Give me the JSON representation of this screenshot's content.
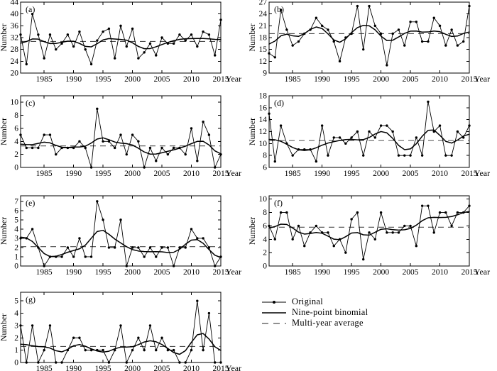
{
  "legend": {
    "items": [
      {
        "label": "Original",
        "sample": "line-dot"
      },
      {
        "label": "Nine-point binomial",
        "sample": "solid-line"
      },
      {
        "label": "Multi-year average",
        "sample": "dashed-line"
      }
    ]
  },
  "colors": {
    "series": "#000000",
    "average_dash": "#4d4d4d",
    "background": "#ffffff"
  },
  "chart_data": [
    {
      "panel": "(a)",
      "type": "line",
      "xlabel": "Year",
      "ylabel": "Number",
      "x_start": 1981,
      "x_end": 2015,
      "xticks": [
        1985,
        1990,
        1995,
        2000,
        2005,
        2010,
        2015
      ],
      "ylim": [
        20,
        44
      ],
      "yticks": [
        20,
        24,
        28,
        32,
        36,
        40,
        44
      ],
      "series": [
        {
          "name": "Original",
          "style": "line-with-dots",
          "values": [
            33,
            23,
            40,
            33,
            25,
            33,
            28,
            30,
            33,
            29,
            34,
            28,
            23,
            31,
            34,
            35,
            25,
            36,
            29,
            35,
            25,
            27,
            30,
            26,
            32,
            30,
            30,
            33,
            31,
            33,
            29,
            34,
            33,
            26,
            38
          ]
        },
        {
          "name": "Nine-point binomial",
          "style": "smooth-line",
          "derived_from": "Original"
        },
        {
          "name": "Multi-year average",
          "style": "dashed-line",
          "value": 30.7
        }
      ]
    },
    {
      "panel": "(b)",
      "type": "line",
      "xlabel": "Year",
      "ylabel": "Number",
      "x_start": 1981,
      "x_end": 2015,
      "xticks": [
        1985,
        1990,
        1995,
        2000,
        2005,
        2010,
        2015
      ],
      "ylim": [
        9,
        27
      ],
      "yticks": [
        9,
        12,
        15,
        18,
        21,
        24,
        27
      ],
      "series": [
        {
          "name": "Original",
          "style": "line-with-dots",
          "values": [
            14,
            13,
            25,
            20,
            16,
            17,
            19,
            20,
            23,
            21,
            20,
            17,
            12,
            18,
            19,
            26,
            15,
            26,
            21,
            19,
            11,
            19,
            20,
            16,
            22,
            22,
            17,
            17,
            23,
            21,
            16,
            20,
            16,
            17,
            26
          ]
        },
        {
          "name": "Nine-point binomial",
          "style": "smooth-line",
          "derived_from": "Original"
        },
        {
          "name": "Multi-year average",
          "style": "dashed-line",
          "value": 19.0
        }
      ]
    },
    {
      "panel": "(c)",
      "type": "line",
      "xlabel": "Year",
      "ylabel": "Number",
      "x_start": 1981,
      "x_end": 2015,
      "xticks": [
        1985,
        1990,
        1995,
        2000,
        2005,
        2010,
        2015
      ],
      "ylim": [
        0,
        11
      ],
      "yticks": [
        0,
        2,
        4,
        6,
        8,
        10
      ],
      "series": [
        {
          "name": "Original",
          "style": "line-with-dots",
          "values": [
            5,
            3,
            3,
            3,
            5,
            5,
            2,
            3,
            3,
            3,
            4,
            3,
            0,
            9,
            4,
            4,
            3,
            5,
            2,
            5,
            4,
            0,
            3,
            1,
            3,
            2,
            3,
            3,
            2,
            6,
            1,
            7,
            5,
            0,
            2
          ]
        },
        {
          "name": "Nine-point binomial",
          "style": "smooth-line",
          "derived_from": "Original"
        },
        {
          "name": "Multi-year average",
          "style": "dashed-line",
          "value": 3.3
        }
      ]
    },
    {
      "panel": "(d)",
      "type": "line",
      "xlabel": "Year",
      "ylabel": "Number",
      "x_start": 1981,
      "x_end": 2015,
      "xticks": [
        1985,
        1990,
        1995,
        2000,
        2005,
        2010,
        2015
      ],
      "ylim": [
        6,
        18
      ],
      "yticks": [
        6,
        8,
        10,
        12,
        14,
        16,
        18
      ],
      "series": [
        {
          "name": "Original",
          "style": "line-with-dots",
          "values": [
            15,
            7,
            13,
            10,
            8,
            9,
            9,
            9,
            7,
            13,
            8,
            11,
            11,
            10,
            11,
            12,
            8,
            12,
            11,
            13,
            13,
            12,
            8,
            8,
            8,
            11,
            8,
            17,
            12,
            13,
            8,
            8,
            12,
            11,
            13
          ]
        },
        {
          "name": "Nine-point binomial",
          "style": "smooth-line",
          "derived_from": "Original"
        },
        {
          "name": "Multi-year average",
          "style": "dashed-line",
          "value": 10.5
        }
      ]
    },
    {
      "panel": "(e)",
      "type": "line",
      "xlabel": "Year",
      "ylabel": "Number",
      "x_start": 1981,
      "x_end": 2015,
      "xticks": [
        1985,
        1990,
        1995,
        2000,
        2005,
        2010,
        2015
      ],
      "ylim": [
        0,
        7.6
      ],
      "yticks": [
        0,
        1,
        2,
        3,
        4,
        5,
        6,
        7
      ],
      "series": [
        {
          "name": "Original",
          "style": "line-with-dots",
          "values": [
            3,
            3,
            4,
            2,
            0,
            1,
            1,
            1,
            2,
            1,
            3,
            1,
            1,
            7,
            5,
            2,
            2,
            5,
            0,
            2,
            2,
            1,
            2,
            1,
            2,
            2,
            0,
            2,
            2,
            4,
            3,
            3,
            2,
            0,
            1
          ]
        },
        {
          "name": "Nine-point binomial",
          "style": "smooth-line",
          "derived_from": "Original"
        },
        {
          "name": "Multi-year average",
          "style": "dashed-line",
          "value": 2.1
        }
      ]
    },
    {
      "panel": "(f)",
      "type": "line",
      "xlabel": "Year",
      "ylabel": "Number",
      "x_start": 1981,
      "x_end": 2015,
      "xticks": [
        1985,
        1990,
        1995,
        2000,
        2005,
        2010,
        2015
      ],
      "ylim": [
        0,
        10.5
      ],
      "yticks": [
        0,
        2,
        4,
        6,
        8,
        10
      ],
      "series": [
        {
          "name": "Original",
          "style": "line-with-dots",
          "values": [
            6,
            4,
            8,
            8,
            4,
            6,
            3,
            5,
            6,
            5,
            5,
            3,
            4,
            2,
            7,
            8,
            1,
            5,
            4,
            8,
            5,
            5,
            5,
            6,
            6,
            3,
            9,
            9,
            5,
            8,
            8,
            6,
            8,
            8,
            9
          ]
        },
        {
          "name": "Nine-point binomial",
          "style": "smooth-line",
          "derived_from": "Original"
        },
        {
          "name": "Multi-year average",
          "style": "dashed-line",
          "value": 5.8
        }
      ]
    },
    {
      "panel": "(g)",
      "type": "line",
      "xlabel": "Year",
      "ylabel": "Number",
      "x_start": 1981,
      "x_end": 2015,
      "xticks": [
        1985,
        1990,
        1995,
        2000,
        2005,
        2010,
        2015
      ],
      "ylim": [
        0,
        5.7
      ],
      "yticks": [
        0,
        1,
        2,
        3,
        4,
        5
      ],
      "series": [
        {
          "name": "Original",
          "style": "line-with-dots",
          "values": [
            3,
            0,
            3,
            0,
            1,
            3,
            0,
            0,
            1,
            2,
            2,
            1,
            1,
            1,
            1,
            0,
            1,
            3,
            0,
            1,
            2,
            1,
            3,
            1,
            2,
            1,
            1,
            0,
            0,
            1,
            5,
            1,
            4,
            0,
            0
          ]
        },
        {
          "name": "Nine-point binomial",
          "style": "smooth-line",
          "derived_from": "Original"
        },
        {
          "name": "Multi-year average",
          "style": "dashed-line",
          "value": 1.3
        }
      ]
    }
  ]
}
